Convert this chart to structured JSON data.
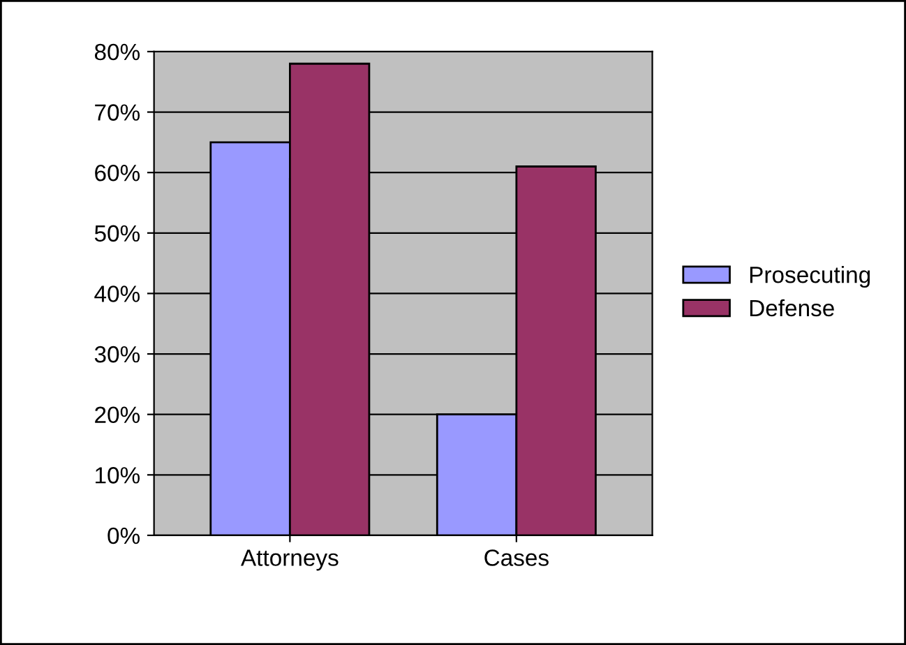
{
  "chart_data": {
    "type": "bar",
    "categories": [
      "Attorneys",
      "Cases"
    ],
    "series": [
      {
        "name": "Prosecuting",
        "color": "#9999ff",
        "values": [
          65,
          20
        ]
      },
      {
        "name": "Defense",
        "color": "#993366",
        "values": [
          78,
          61
        ]
      }
    ],
    "ylim": [
      0,
      80
    ],
    "yticks": [
      {
        "value": 0,
        "label": "0%"
      },
      {
        "value": 10,
        "label": "10%"
      },
      {
        "value": 20,
        "label": "20%"
      },
      {
        "value": 30,
        "label": "30%"
      },
      {
        "value": 40,
        "label": "40%"
      },
      {
        "value": 50,
        "label": "50%"
      },
      {
        "value": 60,
        "label": "60%"
      },
      {
        "value": 70,
        "label": "70%"
      },
      {
        "value": 80,
        "label": "80%"
      }
    ],
    "grid": "y",
    "legend": "right"
  }
}
